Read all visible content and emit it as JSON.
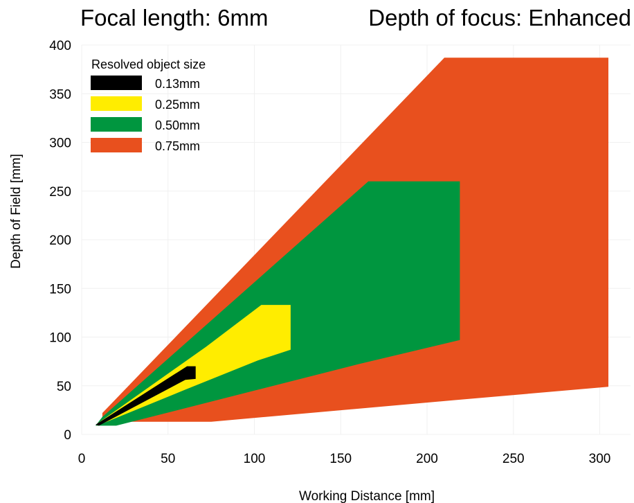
{
  "titles": {
    "left": "Focal length: 6mm",
    "right": "Depth of focus: Enhanced"
  },
  "chart_data": {
    "type": "area",
    "xlabel": "Working Distance [mm]",
    "ylabel": "Depth of Field [mm]",
    "xlim": [
      0,
      315
    ],
    "ylim": [
      0,
      400
    ],
    "x_ticks": [
      0,
      50,
      100,
      150,
      200,
      250,
      300
    ],
    "y_ticks": [
      0,
      50,
      100,
      150,
      200,
      250,
      300,
      350,
      400
    ],
    "grid": true,
    "legend": {
      "title": "Resolved object size",
      "placement": "top-left"
    },
    "series": [
      {
        "name": "0.75mm",
        "color": "#E8501E",
        "polygon": [
          [
            12,
            22
          ],
          [
            210,
            387
          ],
          [
            305,
            387
          ],
          [
            305,
            49
          ],
          [
            215,
            35
          ],
          [
            75,
            13
          ],
          [
            13,
            13
          ],
          [
            12,
            15
          ]
        ]
      },
      {
        "name": "0.50mm",
        "color": "#00963F",
        "polygon": [
          [
            12,
            18
          ],
          [
            166,
            260
          ],
          [
            219,
            260
          ],
          [
            219,
            97
          ],
          [
            160,
            72
          ],
          [
            100,
            45
          ],
          [
            20,
            9
          ],
          [
            8,
            9
          ]
        ]
      },
      {
        "name": "0.25mm",
        "color": "#FFED00",
        "polygon": [
          [
            9,
            11
          ],
          [
            72,
            90
          ],
          [
            104,
            133
          ],
          [
            121,
            133
          ],
          [
            121,
            87
          ],
          [
            102,
            76
          ],
          [
            60,
            46
          ],
          [
            9,
            9
          ]
        ]
      },
      {
        "name": "0.13mm",
        "color": "#000000",
        "polygon": [
          [
            8,
            10
          ],
          [
            61,
            70
          ],
          [
            66,
            70
          ],
          [
            66,
            57
          ],
          [
            60,
            56
          ],
          [
            10,
            9
          ]
        ]
      }
    ],
    "legend_order": [
      "0.13mm",
      "0.25mm",
      "0.50mm",
      "0.75mm"
    ]
  }
}
